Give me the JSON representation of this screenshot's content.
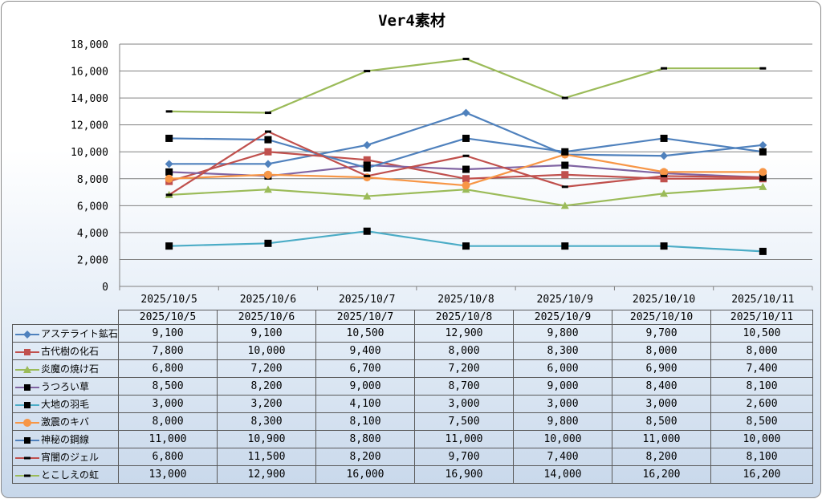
{
  "chart_data": {
    "type": "line",
    "title": "Ver4素材",
    "categories": [
      "2025/10/5",
      "2025/10/6",
      "2025/10/7",
      "2025/10/8",
      "2025/10/9",
      "2025/10/10",
      "2025/10/11"
    ],
    "ylim": [
      0,
      18000
    ],
    "yticks": [
      0,
      2000,
      4000,
      6000,
      8000,
      10000,
      12000,
      14000,
      16000,
      18000
    ],
    "ytick_labels": [
      "0",
      "2,000",
      "4,000",
      "6,000",
      "8,000",
      "10,000",
      "12,000",
      "14,000",
      "16,000",
      "18,000"
    ],
    "grid": true,
    "legend": "data-table-bottom",
    "series": [
      {
        "name": "アステライト鉱石",
        "color": "#4f81bd",
        "marker": "diamond",
        "values": [
          9100,
          9100,
          10500,
          12900,
          9800,
          9700,
          10500
        ],
        "labels": [
          "9,100",
          "9,100",
          "10,500",
          "12,900",
          "9,800",
          "9,700",
          "10,500"
        ]
      },
      {
        "name": "古代樹の化石",
        "color": "#c0504d",
        "marker": "square",
        "values": [
          7800,
          10000,
          9400,
          8000,
          8300,
          8000,
          8000
        ],
        "labels": [
          "7,800",
          "10,000",
          "9,400",
          "8,000",
          "8,300",
          "8,000",
          "8,000"
        ]
      },
      {
        "name": "炎魔の焼け石",
        "color": "#9bbb59",
        "marker": "triangle",
        "values": [
          6800,
          7200,
          6700,
          7200,
          6000,
          6900,
          7400
        ],
        "labels": [
          "6,800",
          "7,200",
          "6,700",
          "7,200",
          "6,000",
          "6,900",
          "7,400"
        ]
      },
      {
        "name": "うつろい草",
        "color": "#8064a2",
        "marker": "square",
        "markerColor": "#000000",
        "values": [
          8500,
          8200,
          9000,
          8700,
          9000,
          8400,
          8100
        ],
        "labels": [
          "8,500",
          "8,200",
          "9,000",
          "8,700",
          "9,000",
          "8,400",
          "8,100"
        ]
      },
      {
        "name": "大地の羽毛",
        "color": "#4bacc6",
        "marker": "square",
        "markerColor": "#000000",
        "values": [
          3000,
          3200,
          4100,
          3000,
          3000,
          3000,
          2600
        ],
        "labels": [
          "3,000",
          "3,200",
          "4,100",
          "3,000",
          "3,000",
          "3,000",
          "2,600"
        ]
      },
      {
        "name": "激震のキバ",
        "color": "#f79646",
        "marker": "circle",
        "values": [
          8000,
          8300,
          8100,
          7500,
          9800,
          8500,
          8500
        ],
        "labels": [
          "8,000",
          "8,300",
          "8,100",
          "7,500",
          "9,800",
          "8,500",
          "8,500"
        ]
      },
      {
        "name": "神秘の鋼線",
        "color": "#4f81bd",
        "marker": "square",
        "markerColor": "#000000",
        "values": [
          11000,
          10900,
          8800,
          11000,
          10000,
          11000,
          10000
        ],
        "labels": [
          "11,000",
          "10,900",
          "8,800",
          "11,000",
          "10,000",
          "11,000",
          "10,000"
        ]
      },
      {
        "name": "宵闇のジェル",
        "color": "#c0504d",
        "marker": "dash",
        "markerColor": "#000000",
        "values": [
          6800,
          11500,
          8200,
          9700,
          7400,
          8200,
          8100
        ],
        "labels": [
          "6,800",
          "11,500",
          "8,200",
          "9,700",
          "7,400",
          "8,200",
          "8,100"
        ]
      },
      {
        "name": "とこしえの虹",
        "color": "#9bbb59",
        "marker": "dash",
        "markerColor": "#000000",
        "values": [
          13000,
          12900,
          16000,
          16900,
          14000,
          16200,
          16200
        ],
        "labels": [
          "13,000",
          "12,900",
          "16,000",
          "16,900",
          "14,000",
          "16,200",
          "16,200"
        ]
      }
    ]
  }
}
